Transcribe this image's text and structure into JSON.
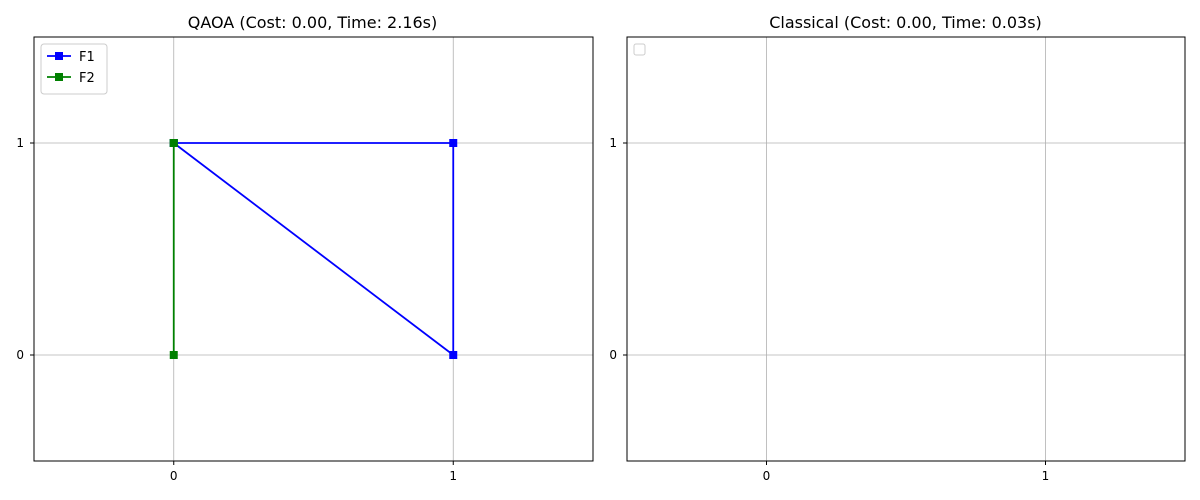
{
  "chart_data": [
    {
      "type": "line",
      "title": "QAOA (Cost: 0.00, Time: 2.16s)",
      "xlabel": "",
      "ylabel": "",
      "xlim": [
        -0.5,
        1.5
      ],
      "ylim": [
        -0.5,
        1.5
      ],
      "xticks": [
        0,
        1
      ],
      "yticks": [
        0,
        1
      ],
      "xtick_labels": [
        "0",
        "1"
      ],
      "ytick_labels": [
        "0",
        "1"
      ],
      "grid": true,
      "legend": "top-left",
      "series": [
        {
          "name": "F1",
          "color": "#0000ff",
          "marker": "square",
          "points": [
            [
              0,
              1
            ],
            [
              1,
              1
            ],
            [
              1,
              0
            ],
            [
              0,
              1
            ]
          ]
        },
        {
          "name": "F2",
          "color": "#008000",
          "marker": "square",
          "points": [
            [
              0,
              1
            ],
            [
              0,
              0
            ],
            [
              0,
              1
            ]
          ]
        }
      ]
    },
    {
      "type": "line",
      "title": "Classical (Cost: 0.00, Time: 0.03s)",
      "xlabel": "",
      "ylabel": "",
      "xlim": [
        -0.5,
        1.5
      ],
      "ylim": [
        -0.5,
        1.5
      ],
      "xticks": [
        0,
        1
      ],
      "yticks": [
        0,
        1
      ],
      "xtick_labels": [
        "0",
        "1"
      ],
      "ytick_labels": [
        "0",
        "1"
      ],
      "grid": true,
      "legend": "top-left",
      "series": []
    }
  ]
}
